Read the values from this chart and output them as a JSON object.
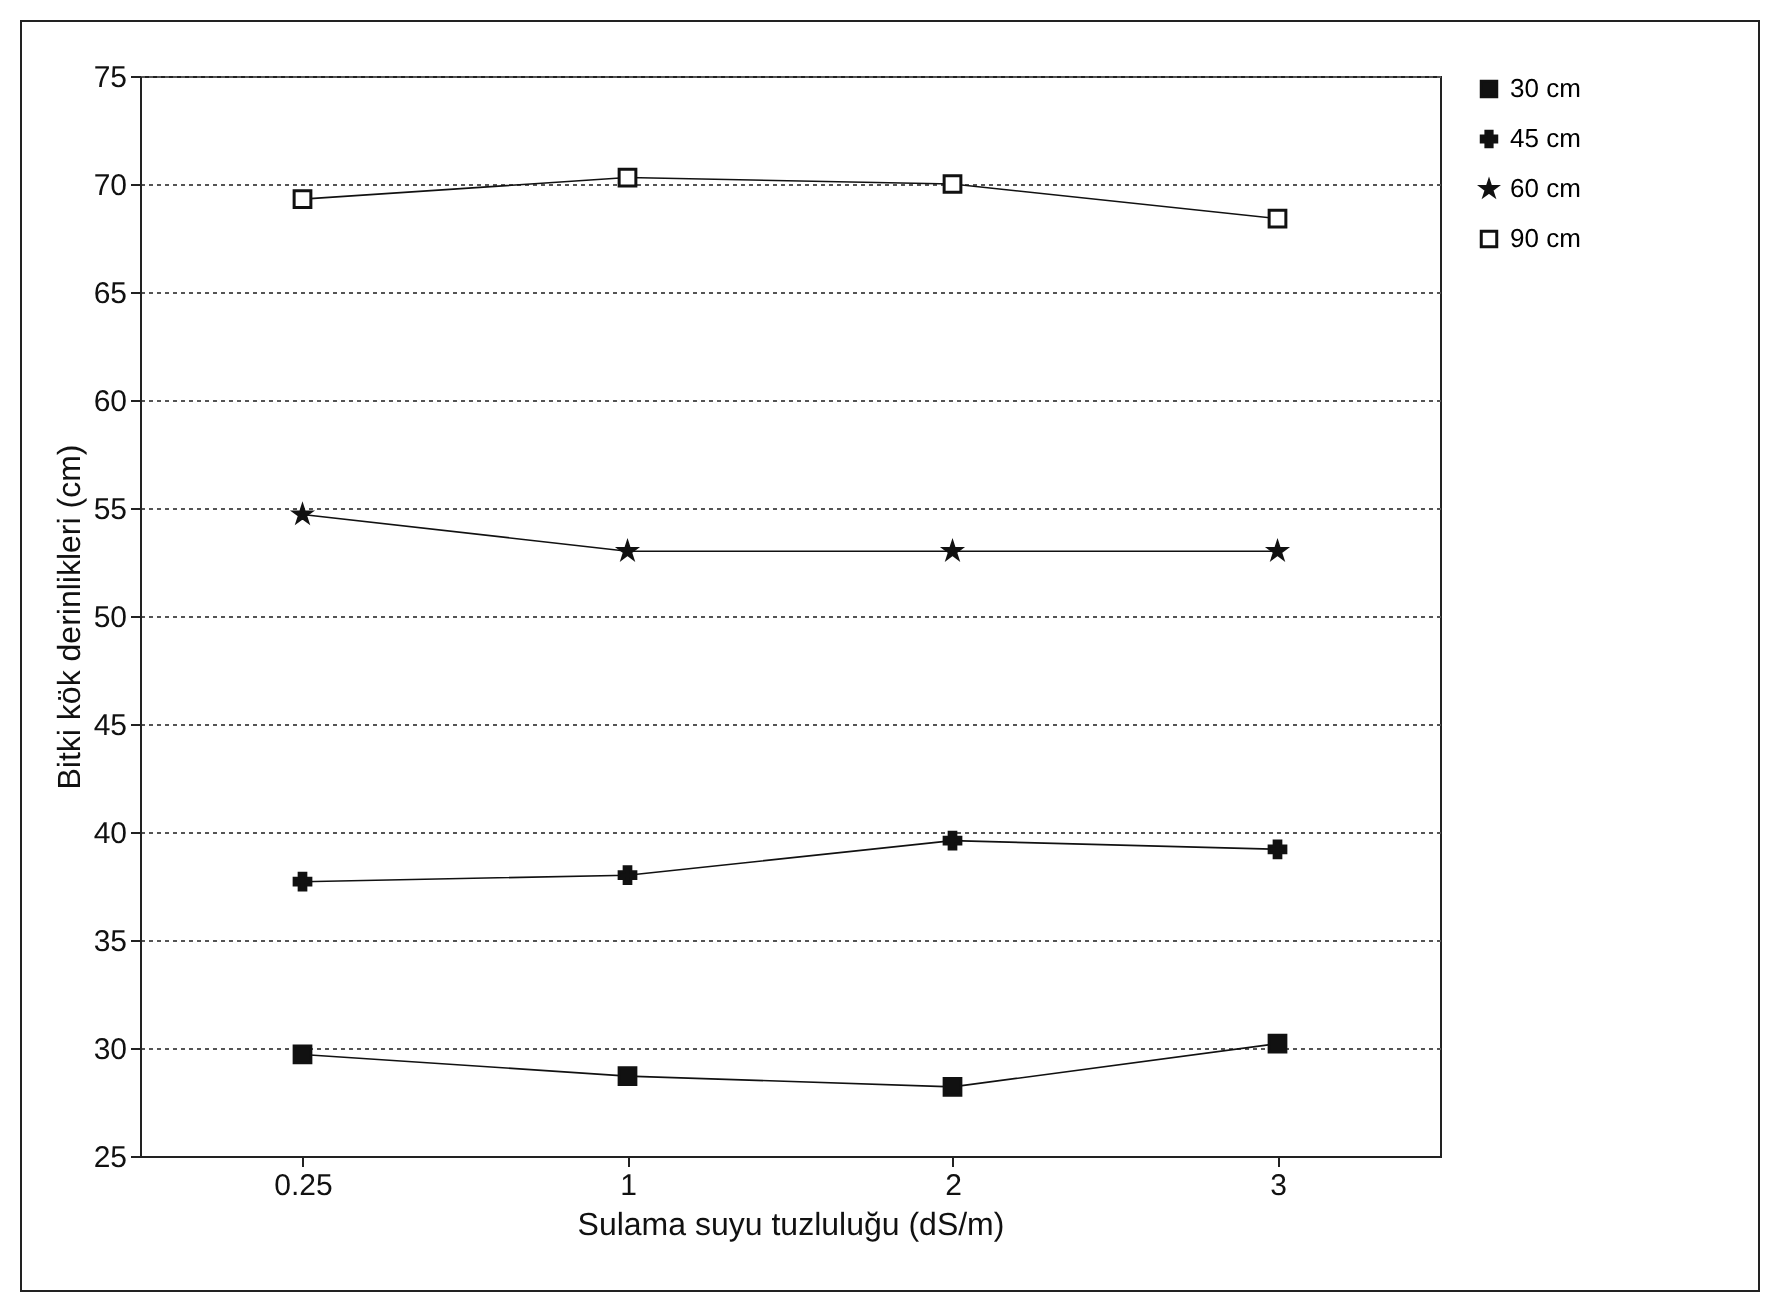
{
  "chart_data": {
    "type": "line",
    "xlabel": "Sulama suyu tuzluluğu (dS/m)",
    "ylabel": "Bitki kök derinlikleri (cm)",
    "categories": [
      "0.25",
      "1",
      "2",
      "3"
    ],
    "ylim": [
      25,
      75
    ],
    "yticks": [
      25,
      30,
      35,
      40,
      45,
      50,
      55,
      60,
      65,
      70,
      75
    ],
    "grid": "y",
    "legend": "top right",
    "series": [
      {
        "name": "30 cm",
        "color": "#111111",
        "marker": "square",
        "values": [
          29.7,
          28.7,
          28.2,
          30.2
        ]
      },
      {
        "name": "45 cm",
        "color": "#111111",
        "marker": "cross",
        "values": [
          37.7,
          38.0,
          39.6,
          39.2
        ]
      },
      {
        "name": "60 cm",
        "color": "#111111",
        "marker": "star",
        "values": [
          54.7,
          53.0,
          53.0,
          53.0
        ]
      },
      {
        "name": "90 cm",
        "color": "#111111",
        "marker": "square",
        "values": [
          69.3,
          70.3,
          70.0,
          68.4
        ]
      }
    ]
  }
}
